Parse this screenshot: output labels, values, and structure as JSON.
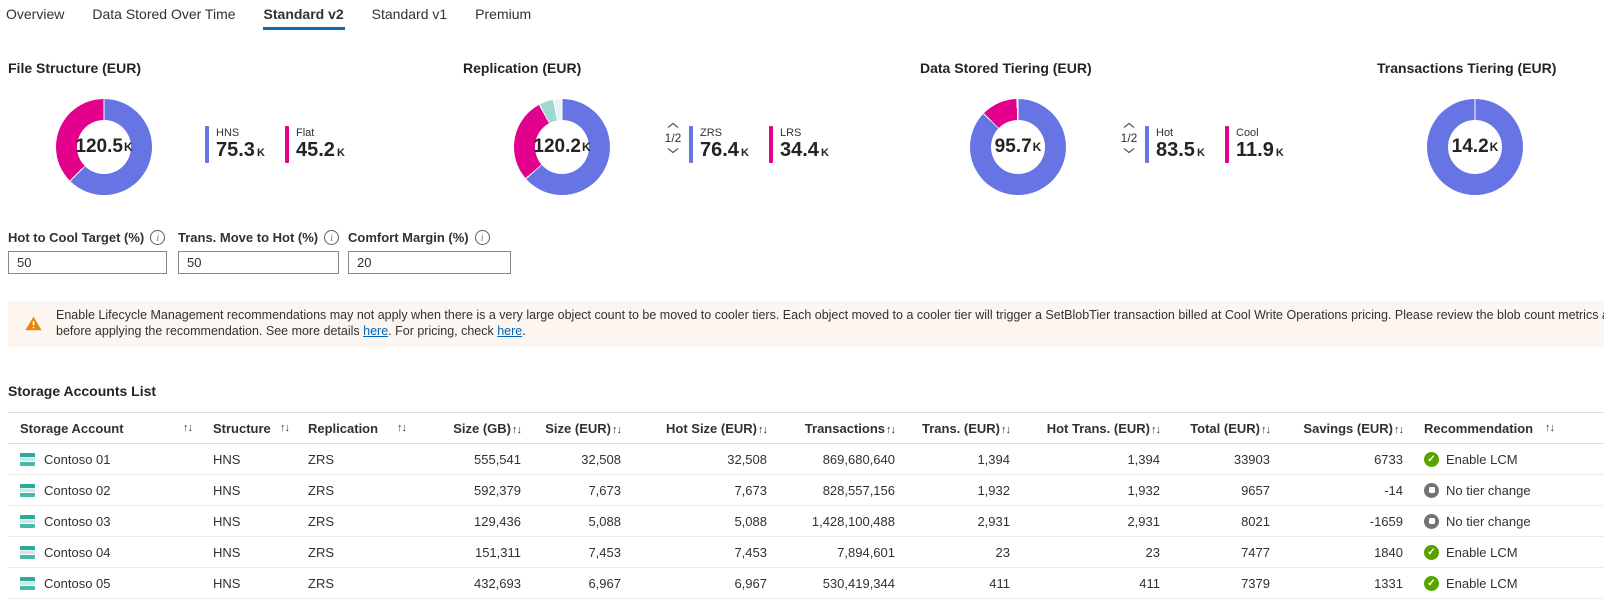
{
  "tabs": [
    {
      "label": "Overview",
      "active": false
    },
    {
      "label": "Data Stored Over Time",
      "active": false
    },
    {
      "label": "Standard v2",
      "active": true
    },
    {
      "label": "Standard v1",
      "active": false
    },
    {
      "label": "Premium",
      "active": false
    }
  ],
  "icons": {
    "sort": "↑↓",
    "check": "✓",
    "info": "i"
  },
  "colors": {
    "accent": "#0f6cbd",
    "donut_blue": "#6774e4",
    "donut_pink": "#e3008c",
    "donut_teal": "#9ed8d1",
    "donut_pale": "#e8f3f1",
    "green": "#57a300",
    "gray": "#737373",
    "warning_orange": "#e8830c",
    "banner_bg": "#fdf6f0"
  },
  "chart_data": [
    {
      "type": "pie",
      "title": "File Structure (EUR)",
      "center_value": "120.5",
      "center_unit": "K",
      "segments": [
        {
          "name": "HNS",
          "value": 75.3,
          "color": "#6774e4"
        },
        {
          "name": "Flat",
          "value": 45.2,
          "color": "#e3008c"
        }
      ],
      "legend": [
        {
          "label": "HNS",
          "value": "75.3",
          "unit": "K",
          "color": "#6774e4"
        },
        {
          "label": "Flat",
          "value": "45.2",
          "unit": "K",
          "color": "#e3008c"
        }
      ],
      "pagination": null
    },
    {
      "type": "pie",
      "title": "Replication (EUR)",
      "center_value": "120.2",
      "center_unit": "K",
      "segments": [
        {
          "name": "ZRS",
          "value": 76.4,
          "color": "#6774e4"
        },
        {
          "name": "LRS",
          "value": 34.4,
          "color": "#e3008c"
        },
        {
          "name": "other",
          "value": 6.0,
          "color": "#9ed8d1"
        },
        {
          "name": "other2",
          "value": 3.4,
          "color": "#e8f3f1"
        }
      ],
      "legend": [
        {
          "label": "ZRS",
          "value": "76.4",
          "unit": "K",
          "color": "#6774e4"
        },
        {
          "label": "LRS",
          "value": "34.4",
          "unit": "K",
          "color": "#e3008c"
        }
      ],
      "pagination": "1/2"
    },
    {
      "type": "pie",
      "title": "Data Stored Tiering (EUR)",
      "center_value": "95.7",
      "center_unit": "K",
      "segments": [
        {
          "name": "Hot",
          "value": 83.5,
          "color": "#6774e4"
        },
        {
          "name": "Cool",
          "value": 11.9,
          "color": "#e3008c"
        },
        {
          "name": "other",
          "value": 0.3,
          "color": "#e8f3f1"
        }
      ],
      "legend": [
        {
          "label": "Hot",
          "value": "83.5",
          "unit": "K",
          "color": "#6774e4"
        },
        {
          "label": "Cool",
          "value": "11.9",
          "unit": "K",
          "color": "#e3008c"
        }
      ],
      "pagination": "1/2"
    },
    {
      "type": "pie",
      "title": "Transactions Tiering (EUR)",
      "center_value": "14.2",
      "center_unit": "K",
      "segments": [
        {
          "name": "total",
          "value": 14.2,
          "color": "#6774e4"
        }
      ],
      "legend": [],
      "pagination": null
    }
  ],
  "inputs": [
    {
      "label": "Hot to Cool Target (%)",
      "value": "50"
    },
    {
      "label": "Trans. Move to Hot (%)",
      "value": "50"
    },
    {
      "label": "Comfort Margin (%)",
      "value": "20"
    }
  ],
  "banner": {
    "line1": "Enable Lifecycle Management recommendations may not apply when there is a very large object count to be moved to cooler tiers. Each object moved to a cooler tier will trigger a SetBlobTier transaction billed at Cool Write Operations pricing. Please review the blob count metrics and estimate the",
    "line2_prefix": "before applying the recommendation. See more details ",
    "link1": "here",
    "line2_mid": ". For pricing, check ",
    "link2": "here",
    "line2_suffix": "."
  },
  "table": {
    "title": "Storage Accounts List",
    "columns": [
      {
        "label": "Storage Account",
        "align": "left"
      },
      {
        "label": "Structure",
        "align": "left"
      },
      {
        "label": "Replication",
        "align": "left"
      },
      {
        "label": "Size (GB)",
        "align": "right"
      },
      {
        "label": "Size (EUR)",
        "align": "right"
      },
      {
        "label": "Hot Size (EUR)",
        "align": "right"
      },
      {
        "label": "Transactions",
        "align": "right"
      },
      {
        "label": "Trans. (EUR)",
        "align": "right"
      },
      {
        "label": "Hot Trans. (EUR)",
        "align": "right"
      },
      {
        "label": "Total (EUR)",
        "align": "right"
      },
      {
        "label": "Savings (EUR)",
        "align": "right"
      },
      {
        "label": "Recommendation",
        "align": "left"
      }
    ],
    "rows": [
      {
        "name": "Contoso 01",
        "structure": "HNS",
        "replication": "ZRS",
        "size_gb": "555,541",
        "size_eur": "32,508",
        "hot_size_eur": "32,508",
        "transactions": "869,680,640",
        "trans_eur": "1,394",
        "hot_trans_eur": "1,394",
        "total_eur": "33903",
        "savings_eur": "6733",
        "recommendation": "Enable LCM",
        "rec_type": "enable"
      },
      {
        "name": "Contoso 02",
        "structure": "HNS",
        "replication": "ZRS",
        "size_gb": "592,379",
        "size_eur": "7,673",
        "hot_size_eur": "7,673",
        "transactions": "828,557,156",
        "trans_eur": "1,932",
        "hot_trans_eur": "1,932",
        "total_eur": "9657",
        "savings_eur": "-14",
        "recommendation": "No tier change",
        "rec_type": "none"
      },
      {
        "name": "Contoso 03",
        "structure": "HNS",
        "replication": "ZRS",
        "size_gb": "129,436",
        "size_eur": "5,088",
        "hot_size_eur": "5,088",
        "transactions": "1,428,100,488",
        "trans_eur": "2,931",
        "hot_trans_eur": "2,931",
        "total_eur": "8021",
        "savings_eur": "-1659",
        "recommendation": "No tier change",
        "rec_type": "none"
      },
      {
        "name": "Contoso 04",
        "structure": "HNS",
        "replication": "ZRS",
        "size_gb": "151,311",
        "size_eur": "7,453",
        "hot_size_eur": "7,453",
        "transactions": "7,894,601",
        "trans_eur": "23",
        "hot_trans_eur": "23",
        "total_eur": "7477",
        "savings_eur": "1840",
        "recommendation": "Enable LCM",
        "rec_type": "enable"
      },
      {
        "name": "Contoso 05",
        "structure": "HNS",
        "replication": "ZRS",
        "size_gb": "432,693",
        "size_eur": "6,967",
        "hot_size_eur": "6,967",
        "transactions": "530,419,344",
        "trans_eur": "411",
        "hot_trans_eur": "411",
        "total_eur": "7379",
        "savings_eur": "1331",
        "recommendation": "Enable LCM",
        "rec_type": "enable"
      }
    ]
  }
}
